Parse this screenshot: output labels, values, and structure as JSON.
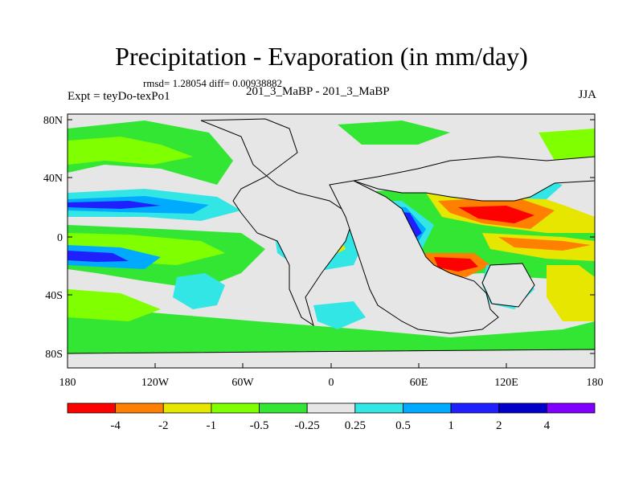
{
  "header": {
    "title": "Precipitation - Evaporation (in mm/day)",
    "stats": "rmsd= 1.28054 diff= 0.00938882",
    "experiment": "Expt = teyDo-texPo1",
    "case": "201_3_MaBP - 201_3_MaBP",
    "season": "JJA"
  },
  "map": {
    "lat_labels": [
      "80N",
      "40N",
      "0",
      "40S",
      "80S"
    ],
    "lon_labels": [
      "180",
      "120W",
      "60W",
      "0",
      "60E",
      "120E",
      "180"
    ],
    "lat_range": [
      -90,
      90
    ],
    "lon_range": [
      -180,
      180
    ]
  },
  "colorbar": {
    "labels": [
      "-4",
      "-2",
      "-1",
      "-0.5",
      "-0.25",
      "0.25",
      "0.5",
      "1",
      "2",
      "4"
    ],
    "colors": [
      "#ff0000",
      "#ff7f00",
      "#e6e600",
      "#80ff00",
      "#33e633",
      "#e6e6e6",
      "#33e6e6",
      "#00aaff",
      "#2020ff",
      "#0000c8",
      "#8000ff"
    ]
  },
  "colors": {
    "land": "#e6e6e6",
    "coast": "#000000"
  }
}
